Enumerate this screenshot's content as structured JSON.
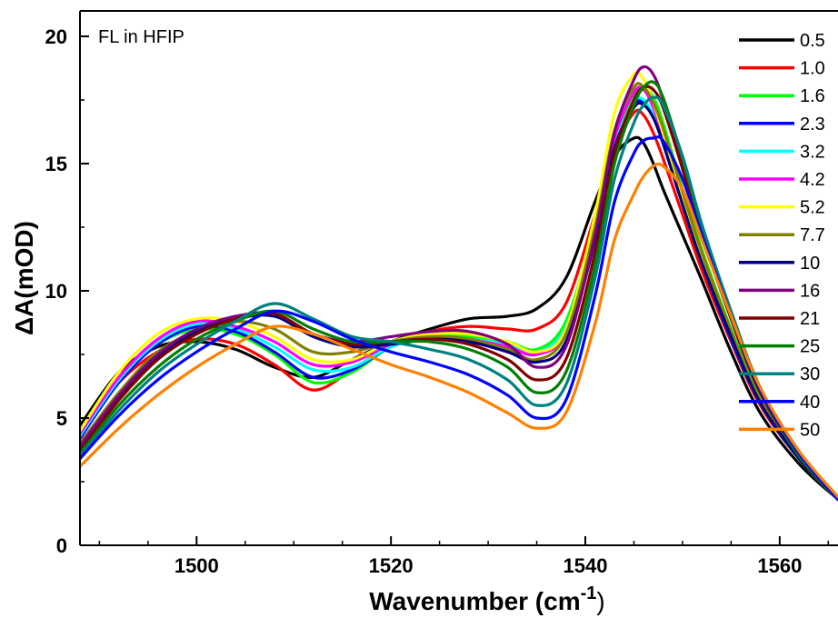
{
  "chart_data": {
    "type": "line",
    "annotation": "FL in HFIP",
    "xlabel_main": "Wavenumber (cm",
    "xlabel_sup": "-1",
    "xlabel_close": ")",
    "ylabel": "ΔA(mOD)",
    "xlim": [
      1488,
      1566
    ],
    "ylim": [
      0,
      21
    ],
    "xticks": [
      1500,
      1520,
      1540,
      1560
    ],
    "yticks": [
      0,
      5,
      10,
      15,
      20
    ],
    "x": [
      1488,
      1492,
      1496,
      1500,
      1504,
      1508,
      1512,
      1516,
      1520,
      1524,
      1528,
      1532,
      1535,
      1538,
      1541,
      1543,
      1545,
      1546,
      1547,
      1548,
      1550,
      1552,
      1555,
      1558,
      1562,
      1566
    ],
    "series": [
      {
        "name": "0.5",
        "color": "#000000",
        "values": [
          4.7,
          6.8,
          7.8,
          8.0,
          7.7,
          7.0,
          6.6,
          7.3,
          8.0,
          8.5,
          8.9,
          9.0,
          9.3,
          10.5,
          13.5,
          15.3,
          16.0,
          15.8,
          15.0,
          14.0,
          12.2,
          10.4,
          7.6,
          5.2,
          3.2,
          1.8
        ]
      },
      {
        "name": "1.0",
        "color": "#ff0000",
        "values": [
          4.5,
          6.4,
          7.6,
          8.1,
          7.9,
          7.1,
          6.1,
          6.9,
          7.9,
          8.4,
          8.6,
          8.5,
          8.5,
          9.5,
          13.0,
          15.6,
          17.0,
          16.9,
          16.2,
          15.2,
          13.0,
          10.8,
          8.0,
          5.5,
          3.4,
          1.9
        ]
      },
      {
        "name": "1.6",
        "color": "#00ff00",
        "values": [
          4.4,
          6.5,
          7.9,
          8.5,
          8.3,
          7.5,
          6.4,
          6.8,
          7.8,
          8.2,
          8.2,
          8.0,
          7.7,
          8.8,
          12.6,
          15.8,
          17.6,
          18.0,
          17.6,
          16.6,
          14.0,
          11.6,
          8.5,
          5.8,
          3.5,
          1.9
        ]
      },
      {
        "name": "2.3",
        "color": "#0000ff",
        "values": [
          4.2,
          6.4,
          7.9,
          8.6,
          8.4,
          7.6,
          6.6,
          6.9,
          7.8,
          8.1,
          8.1,
          7.8,
          7.5,
          8.5,
          12.2,
          15.6,
          17.3,
          17.4,
          16.8,
          15.8,
          13.4,
          11.1,
          8.1,
          5.6,
          3.4,
          1.8
        ]
      },
      {
        "name": "3.2",
        "color": "#00ffff",
        "values": [
          4.3,
          6.5,
          8.0,
          8.7,
          8.5,
          7.8,
          6.9,
          7.0,
          7.8,
          8.1,
          8.1,
          7.9,
          7.6,
          8.6,
          12.3,
          15.7,
          17.4,
          17.5,
          16.9,
          15.9,
          13.5,
          11.2,
          8.2,
          5.6,
          3.4,
          1.8
        ]
      },
      {
        "name": "4.2",
        "color": "#ff00ff",
        "values": [
          4.4,
          6.6,
          8.1,
          8.8,
          8.6,
          8.0,
          7.1,
          7.2,
          7.9,
          8.2,
          8.1,
          7.8,
          7.5,
          8.4,
          12.4,
          16.0,
          17.8,
          17.9,
          17.2,
          16.1,
          13.6,
          11.3,
          8.3,
          5.7,
          3.4,
          1.8
        ]
      },
      {
        "name": "5.2",
        "color": "#ffff00",
        "values": [
          4.5,
          6.8,
          8.3,
          8.9,
          8.8,
          8.2,
          7.3,
          7.3,
          8.0,
          8.3,
          8.3,
          8.0,
          7.6,
          8.5,
          13.0,
          17.0,
          18.5,
          18.3,
          17.4,
          16.2,
          13.7,
          11.3,
          8.3,
          5.7,
          3.4,
          1.8
        ]
      },
      {
        "name": "7.7",
        "color": "#808000",
        "values": [
          4.0,
          6.0,
          7.6,
          8.4,
          8.8,
          8.5,
          7.6,
          7.6,
          8.0,
          8.2,
          8.1,
          7.7,
          7.3,
          8.3,
          12.5,
          16.3,
          18.0,
          18.0,
          17.4,
          16.4,
          13.9,
          11.5,
          8.4,
          5.7,
          3.4,
          1.8
        ]
      },
      {
        "name": "10",
        "color": "#000080",
        "values": [
          3.8,
          5.8,
          7.4,
          8.4,
          8.9,
          9.0,
          8.2,
          7.8,
          7.9,
          8.1,
          8.0,
          7.6,
          7.2,
          8.0,
          12.0,
          15.6,
          17.2,
          17.3,
          16.8,
          15.8,
          13.4,
          11.1,
          8.2,
          5.6,
          3.4,
          1.8
        ]
      },
      {
        "name": "16",
        "color": "#800080",
        "values": [
          3.9,
          5.9,
          7.5,
          8.5,
          9.0,
          9.1,
          8.3,
          8.0,
          8.2,
          8.4,
          8.4,
          7.9,
          7.0,
          7.8,
          12.2,
          16.2,
          18.3,
          18.8,
          18.5,
          17.5,
          14.8,
          12.2,
          8.9,
          6.0,
          3.5,
          1.8
        ]
      },
      {
        "name": "21",
        "color": "#800000",
        "values": [
          3.7,
          5.7,
          7.3,
          8.3,
          8.9,
          9.1,
          8.3,
          7.9,
          8.0,
          8.1,
          7.9,
          7.3,
          6.5,
          7.3,
          11.5,
          15.4,
          17.5,
          18.0,
          17.9,
          17.2,
          14.8,
          12.2,
          8.9,
          6.0,
          3.5,
          1.8
        ]
      },
      {
        "name": "25",
        "color": "#008000",
        "values": [
          3.6,
          5.5,
          7.0,
          8.1,
          8.8,
          9.2,
          8.5,
          8.0,
          8.0,
          8.0,
          7.7,
          7.0,
          6.0,
          6.8,
          11.0,
          15.0,
          17.3,
          18.0,
          18.2,
          17.6,
          15.2,
          12.5,
          9.1,
          6.1,
          3.5,
          1.8
        ]
      },
      {
        "name": "30",
        "color": "#008080",
        "values": [
          3.5,
          5.3,
          6.8,
          7.9,
          8.8,
          9.5,
          8.9,
          8.2,
          8.0,
          7.7,
          7.3,
          6.5,
          5.5,
          6.3,
          10.5,
          14.4,
          16.6,
          17.3,
          17.6,
          17.3,
          15.3,
          12.6,
          9.2,
          6.2,
          3.6,
          1.8
        ]
      },
      {
        "name": "40",
        "color": "#0000ff",
        "values": [
          3.4,
          5.1,
          6.5,
          7.6,
          8.5,
          9.2,
          8.8,
          8.1,
          7.6,
          7.2,
          6.7,
          5.9,
          5.0,
          5.7,
          9.8,
          13.5,
          15.4,
          15.9,
          16.0,
          15.9,
          14.4,
          12.2,
          9.0,
          6.1,
          3.6,
          1.8
        ]
      },
      {
        "name": "50",
        "color": "#ff8000",
        "values": [
          3.1,
          4.6,
          5.9,
          7.0,
          7.9,
          8.6,
          8.3,
          7.7,
          7.1,
          6.6,
          6.0,
          5.2,
          4.6,
          5.2,
          8.7,
          12.0,
          13.8,
          14.5,
          14.9,
          14.9,
          14.0,
          12.0,
          9.0,
          6.2,
          3.7,
          1.9
        ]
      }
    ]
  }
}
